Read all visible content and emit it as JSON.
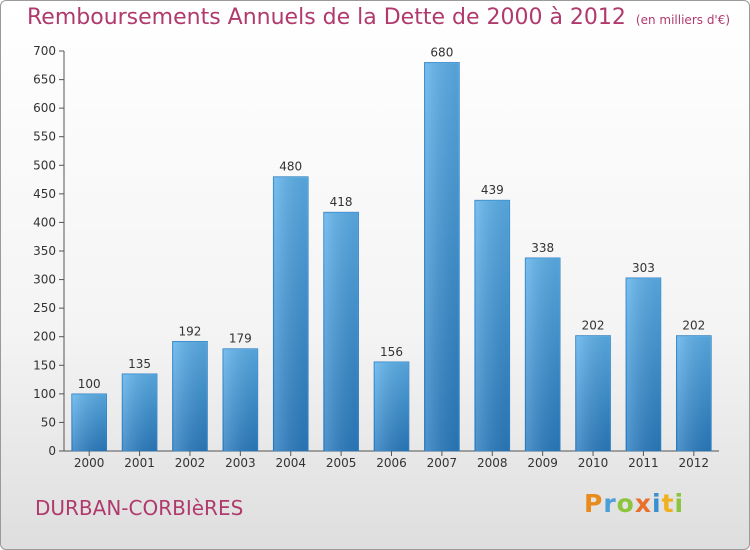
{
  "header": {
    "title": "Remboursements Annuels de la Dette de 2000 à 2012",
    "subtitle": "(en milliers d'€)"
  },
  "footer": {
    "commune": "DURBAN-CORBIèRES",
    "logo": {
      "letters": [
        "P",
        "r",
        "o",
        "x",
        "i",
        "t",
        "i"
      ],
      "colors": [
        "#e88b1c",
        "#4a9fd8",
        "#8cc43c",
        "#e8702a",
        "#3a8fd0",
        "#f0b020",
        "#8cc43c"
      ]
    }
  },
  "chart_data": {
    "type": "bar",
    "categories": [
      "2000",
      "2001",
      "2002",
      "2003",
      "2004",
      "2005",
      "2006",
      "2007",
      "2008",
      "2009",
      "2010",
      "2011",
      "2012"
    ],
    "values": [
      100,
      135,
      192,
      179,
      480,
      418,
      156,
      680,
      439,
      338,
      202,
      303,
      202
    ],
    "data_labels": [
      "100",
      "135",
      "192",
      "179",
      "480",
      "418",
      "156",
      "680",
      "439",
      "338",
      "202",
      "303",
      "202"
    ],
    "yticks": [
      0,
      50,
      100,
      150,
      200,
      250,
      300,
      350,
      400,
      450,
      500,
      550,
      600,
      650,
      700
    ],
    "ylim": [
      0,
      700
    ],
    "grid": false,
    "bar_color": "#4a9fe0"
  }
}
